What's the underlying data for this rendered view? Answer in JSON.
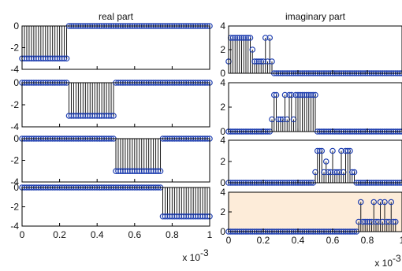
{
  "chart_data": [
    {
      "type": "stem",
      "title": "real part",
      "xlim": [
        0,
        1
      ],
      "ylim": [
        -4,
        0
      ],
      "yticks": [
        "0",
        "-2",
        "-4"
      ],
      "xticks": [],
      "x_exponent": "",
      "segments": [
        {
          "x0": 0,
          "x1": 0.25,
          "y": -3
        },
        {
          "x0": 0.25,
          "x1": 1,
          "y": 0
        }
      ]
    },
    {
      "type": "stem",
      "title": "",
      "xlim": [
        0,
        1
      ],
      "ylim": [
        -4,
        0
      ],
      "yticks": [
        "0",
        "-2",
        "-4"
      ],
      "xticks": [],
      "x_exponent": "",
      "segments": [
        {
          "x0": 0,
          "x1": 0.25,
          "y": 0
        },
        {
          "x0": 0.25,
          "x1": 0.5,
          "y": -3
        },
        {
          "x0": 0.5,
          "x1": 1,
          "y": 0
        }
      ]
    },
    {
      "type": "stem",
      "title": "",
      "xlim": [
        0,
        1
      ],
      "ylim": [
        -4,
        0
      ],
      "yticks": [
        "0",
        "-2",
        "-4"
      ],
      "xticks": [],
      "x_exponent": "",
      "segments": [
        {
          "x0": 0,
          "x1": 0.5,
          "y": 0
        },
        {
          "x0": 0.5,
          "x1": 0.75,
          "y": -3
        },
        {
          "x0": 0.75,
          "x1": 1,
          "y": 0
        }
      ]
    },
    {
      "type": "stem",
      "title": "",
      "xlim": [
        0,
        1
      ],
      "ylim": [
        -4,
        0
      ],
      "yticks": [
        "0",
        "-2",
        "-4"
      ],
      "xticks": [
        "0",
        "0.2",
        "0.4",
        "0.6",
        "0.8",
        "1"
      ],
      "x_exponent": "x 10",
      "segments": [
        {
          "x0": 0,
          "x1": 0.75,
          "y": 0
        },
        {
          "x0": 0.75,
          "x1": 1,
          "y": -3
        }
      ]
    },
    {
      "type": "stem",
      "title": "imaginary part",
      "xlim": [
        0,
        1
      ],
      "ylim": [
        0,
        4
      ],
      "yticks": [
        "4",
        "2",
        "0"
      ],
      "xticks": [],
      "x_exponent": "",
      "points": [
        [
          0.0,
          1
        ],
        [
          0.0125,
          3
        ],
        [
          0.025,
          3
        ],
        [
          0.0375,
          3
        ],
        [
          0.05,
          3
        ],
        [
          0.0625,
          3
        ],
        [
          0.075,
          3
        ],
        [
          0.0875,
          3
        ],
        [
          0.1,
          3
        ],
        [
          0.1125,
          3
        ],
        [
          0.125,
          3
        ],
        [
          0.1375,
          2
        ],
        [
          0.15,
          1
        ],
        [
          0.1625,
          1
        ],
        [
          0.175,
          1
        ],
        [
          0.1875,
          1
        ],
        [
          0.2,
          1
        ],
        [
          0.2125,
          3
        ],
        [
          0.225,
          1
        ],
        [
          0.2375,
          3
        ],
        [
          0.25,
          1
        ]
      ],
      "baseline_from": 0.25
    },
    {
      "type": "stem",
      "title": "",
      "xlim": [
        0,
        1
      ],
      "ylim": [
        0,
        4
      ],
      "yticks": [
        "4",
        "2",
        "0"
      ],
      "xticks": [],
      "x_exponent": "",
      "points": [
        [
          0.25,
          1
        ],
        [
          0.2625,
          3
        ],
        [
          0.275,
          3
        ],
        [
          0.2875,
          1
        ],
        [
          0.3,
          1
        ],
        [
          0.3125,
          1
        ],
        [
          0.325,
          3
        ],
        [
          0.3375,
          1
        ],
        [
          0.35,
          3
        ],
        [
          0.3625,
          3
        ],
        [
          0.375,
          1
        ],
        [
          0.3875,
          3
        ],
        [
          0.4,
          3
        ],
        [
          0.4125,
          3
        ],
        [
          0.425,
          3
        ],
        [
          0.4375,
          3
        ],
        [
          0.45,
          3
        ],
        [
          0.4625,
          3
        ],
        [
          0.475,
          3
        ],
        [
          0.4875,
          3
        ],
        [
          0.5,
          3
        ]
      ],
      "baseline_from": 0.5
    },
    {
      "type": "stem",
      "title": "",
      "xlim": [
        0,
        1
      ],
      "ylim": [
        0,
        4
      ],
      "yticks": [
        "4",
        "2",
        "0"
      ],
      "xticks": [],
      "x_exponent": "",
      "points": [
        [
          0.5,
          1
        ],
        [
          0.5125,
          3
        ],
        [
          0.525,
          3
        ],
        [
          0.5375,
          3
        ],
        [
          0.55,
          1
        ],
        [
          0.5625,
          2
        ],
        [
          0.575,
          1
        ],
        [
          0.5875,
          1
        ],
        [
          0.6,
          3
        ],
        [
          0.6125,
          1
        ],
        [
          0.625,
          1
        ],
        [
          0.6375,
          1
        ],
        [
          0.65,
          3
        ],
        [
          0.6625,
          1
        ],
        [
          0.675,
          3
        ],
        [
          0.6875,
          3
        ],
        [
          0.7,
          3
        ],
        [
          0.7125,
          1
        ],
        [
          0.725,
          1
        ]
      ],
      "baseline_from": 0.725
    },
    {
      "type": "stem",
      "title": "",
      "xlim": [
        0,
        1
      ],
      "ylim": [
        0,
        4
      ],
      "yticks": [
        "4",
        "2",
        "0"
      ],
      "xticks": [
        "0",
        "0.2",
        "0.4",
        "0.6",
        "0.8",
        "1"
      ],
      "x_exponent": "x 10",
      "points": [
        [
          0.75,
          1
        ],
        [
          0.7625,
          3
        ],
        [
          0.775,
          1
        ],
        [
          0.7875,
          1
        ],
        [
          0.8,
          1
        ],
        [
          0.8125,
          1
        ],
        [
          0.825,
          1
        ],
        [
          0.8375,
          3
        ],
        [
          0.85,
          1
        ],
        [
          0.8625,
          1
        ],
        [
          0.875,
          3
        ],
        [
          0.8875,
          1
        ],
        [
          0.9,
          3
        ],
        [
          0.9125,
          1
        ],
        [
          0.925,
          1
        ],
        [
          0.9375,
          3
        ],
        [
          0.95,
          1
        ],
        [
          0.9625,
          1
        ]
      ],
      "baseline_from": 0.0,
      "highlight": "#fdecd9"
    }
  ],
  "x_exponent_power": "-3",
  "colors": {
    "stem": "#1a1a1a",
    "marker": "#1f3fb0",
    "axes": "#000000"
  }
}
